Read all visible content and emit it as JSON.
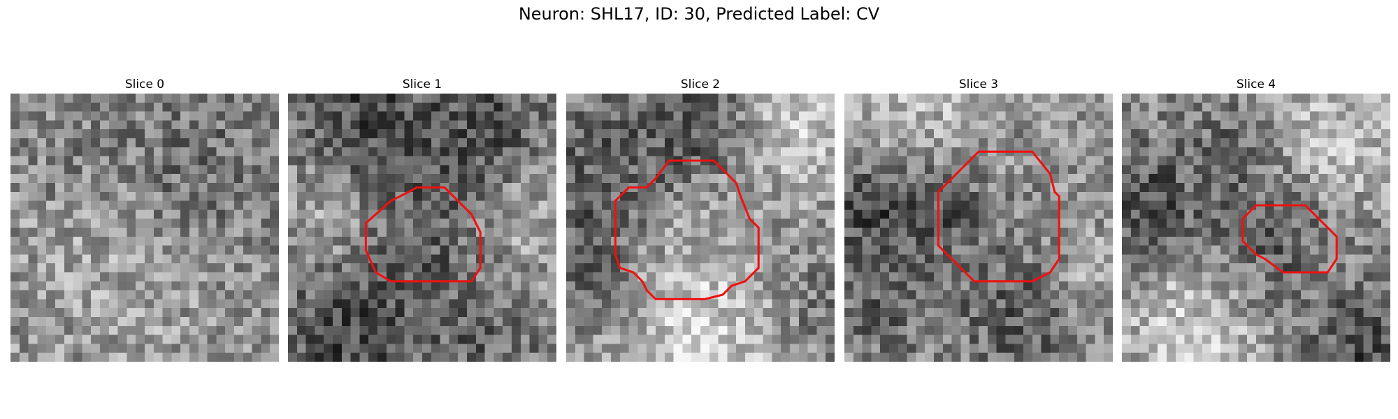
{
  "figure": {
    "title": "Neuron: SHL17, ID: 30, Predicted Label: CV"
  },
  "colors": {
    "contour": "#ee1111",
    "background": "#ffffff"
  },
  "slices": [
    {
      "label": "Slice 0",
      "has_contour": false
    },
    {
      "label": "Slice 1",
      "has_contour": true
    },
    {
      "label": "Slice 2",
      "has_contour": true
    },
    {
      "label": "Slice 3",
      "has_contour": true
    },
    {
      "label": "Slice 4",
      "has_contour": true
    }
  ]
}
